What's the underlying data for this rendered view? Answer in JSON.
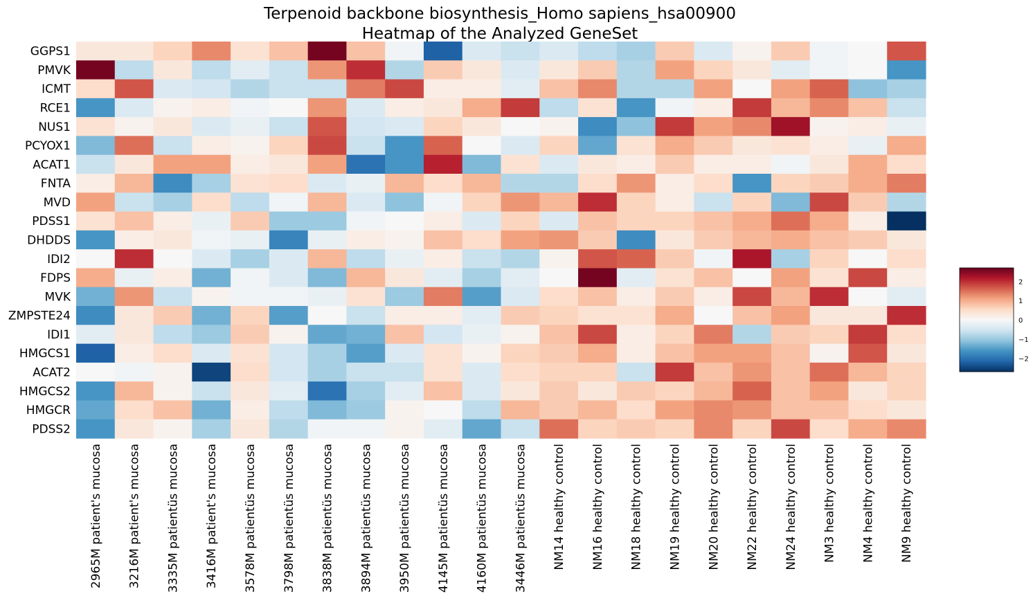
{
  "chart_data": {
    "type": "heatmap",
    "title": "Terpenoid backbone biosynthesis_Homo sapiens_hsa00900",
    "subtitle": "Heatmap of the Analyzed GeneSet",
    "rows": [
      "GGPS1",
      "PMVK",
      "ICMT",
      "RCE1",
      "NUS1",
      "PCYOX1",
      "ACAT1",
      "FNTA",
      "MVD",
      "PDSS1",
      "DHDDS",
      "IDI2",
      "FDPS",
      "MVK",
      "ZMPSTE24",
      "IDI1",
      "HMGCS1",
      "ACAT2",
      "HMGCS2",
      "HMGCR",
      "PDSS2"
    ],
    "columns": [
      "2965M patient's mucosa",
      "3216M patient's mucosa",
      "3335M patientüs mucosa",
      "3416M patient's mucosa",
      "3578M patientüs mucosa",
      "3798M patientüs mucosa",
      "3838M patientüs mucosa",
      "3894M patientüs mucosa",
      "3950M patientüs mucosa",
      "4145M patientüs mucosa",
      "4160M patientüs mucosa",
      "3446M patientüs mucosa",
      "NM14 healthy control",
      "NM16 healthy control",
      "NM18 healthy control",
      "NM19 healthy control",
      "NM20 healthy control",
      "NM22 healthy control",
      "NM24 healthy control",
      "NM3 healthy control",
      "NM4 healthy control",
      "NM9 healthy control"
    ],
    "values": [
      [
        0.3,
        0.3,
        0.6,
        1.3,
        0.4,
        0.8,
        2.6,
        0.8,
        -0.1,
        -2.2,
        -0.4,
        -0.6,
        -0.4,
        -0.7,
        -0.9,
        0.7,
        -0.4,
        0.1,
        0.7,
        -0.1,
        0.0,
        1.7
      ],
      [
        2.6,
        -0.7,
        0.3,
        -0.7,
        -0.3,
        -0.6,
        1.2,
        2.0,
        -0.8,
        0.7,
        0.3,
        -0.4,
        0.3,
        0.7,
        -0.8,
        1.1,
        0.6,
        0.3,
        -0.3,
        -0.1,
        0.0,
        -1.6
      ],
      [
        0.5,
        1.7,
        -0.4,
        -0.5,
        -0.8,
        -0.6,
        -0.6,
        1.4,
        1.8,
        0.2,
        0.2,
        -0.3,
        0.8,
        1.3,
        -0.8,
        -0.8,
        1.1,
        0.0,
        1.1,
        1.6,
        -1.1,
        -0.9
      ],
      [
        -1.6,
        -0.4,
        0.1,
        0.2,
        -0.1,
        0.0,
        1.2,
        -0.4,
        0.2,
        0.3,
        1.0,
        1.9,
        -0.7,
        0.4,
        -1.6,
        -0.1,
        0.2,
        1.9,
        0.9,
        1.3,
        0.8,
        -0.6
      ],
      [
        0.4,
        0.1,
        0.3,
        -0.4,
        -0.2,
        -0.6,
        1.7,
        -0.5,
        -0.4,
        0.6,
        0.3,
        0.0,
        0.1,
        -1.7,
        -1.1,
        1.9,
        1.1,
        1.3,
        2.3,
        0.1,
        0.2,
        -0.2
      ],
      [
        -1.2,
        1.5,
        -0.6,
        0.2,
        0.1,
        0.6,
        1.8,
        -0.6,
        -1.6,
        1.6,
        0.0,
        -0.4,
        0.6,
        -1.4,
        0.4,
        1.0,
        0.7,
        0.3,
        0.4,
        0.2,
        -0.2,
        1.0
      ],
      [
        -0.6,
        0.3,
        1.1,
        1.1,
        0.2,
        0.3,
        1.1,
        -2.0,
        -1.6,
        2.1,
        -1.2,
        0.4,
        -0.4,
        0.3,
        0.2,
        0.7,
        0.2,
        0.2,
        -0.1,
        0.3,
        1.0,
        0.5
      ],
      [
        0.2,
        0.9,
        -1.7,
        -0.9,
        0.4,
        0.5,
        -0.4,
        -0.2,
        0.9,
        0.5,
        0.9,
        -0.8,
        -0.8,
        0.5,
        1.2,
        0.2,
        0.5,
        -1.6,
        0.6,
        0.7,
        1.0,
        1.4
      ],
      [
        1.1,
        -0.6,
        -0.9,
        0.5,
        -0.7,
        -0.1,
        0.9,
        -0.4,
        -1.1,
        -0.1,
        0.6,
        1.2,
        0.9,
        2.0,
        0.6,
        0.2,
        -0.6,
        0.6,
        -1.2,
        1.8,
        0.7,
        -0.8
      ],
      [
        0.4,
        0.8,
        0.2,
        -0.2,
        0.7,
        -1.0,
        -1.0,
        -0.1,
        0.0,
        0.2,
        -0.4,
        0.6,
        -0.4,
        0.8,
        0.6,
        0.6,
        0.8,
        1.0,
        1.5,
        1.0,
        0.2,
        -2.7
      ],
      [
        -1.6,
        0.2,
        0.3,
        -0.1,
        -0.2,
        -1.8,
        -0.2,
        0.2,
        0.1,
        0.8,
        0.5,
        1.1,
        1.2,
        0.7,
        -1.7,
        0.3,
        0.7,
        0.9,
        1.0,
        0.8,
        0.7,
        0.3
      ],
      [
        0.0,
        2.0,
        0.0,
        -0.4,
        -0.9,
        -0.4,
        0.9,
        -0.7,
        -0.2,
        0.2,
        -0.6,
        -0.8,
        0.1,
        1.7,
        1.6,
        0.7,
        -0.1,
        2.2,
        -0.9,
        0.6,
        0.0,
        0.5
      ],
      [
        1.0,
        -0.2,
        0.2,
        -1.3,
        -0.1,
        -0.4,
        -1.2,
        0.9,
        0.3,
        -0.3,
        -0.9,
        -0.3,
        0.0,
        2.6,
        -0.3,
        0.4,
        0.8,
        0.0,
        1.1,
        0.4,
        1.8,
        0.2
      ],
      [
        -1.3,
        1.2,
        -0.6,
        0.1,
        -0.1,
        -0.1,
        -0.2,
        0.4,
        -1.0,
        1.4,
        -1.5,
        -0.4,
        0.5,
        0.8,
        0.2,
        0.7,
        0.2,
        1.8,
        0.9,
        2.0,
        0.0,
        -0.3
      ],
      [
        -1.7,
        0.3,
        0.7,
        -1.3,
        0.6,
        -1.5,
        0.0,
        -0.6,
        0.2,
        0.2,
        -0.3,
        0.7,
        0.6,
        0.4,
        0.4,
        1.0,
        0.0,
        0.8,
        1.1,
        0.3,
        0.3,
        2.0
      ],
      [
        -0.3,
        0.3,
        -0.7,
        -1.0,
        0.7,
        0.1,
        -1.4,
        -1.3,
        0.8,
        -0.5,
        -0.2,
        0.1,
        0.8,
        1.8,
        0.2,
        0.6,
        1.4,
        -0.8,
        0.7,
        0.6,
        1.9,
        0.5
      ],
      [
        -2.2,
        0.2,
        0.5,
        -0.4,
        0.4,
        -0.5,
        -0.9,
        -1.5,
        -0.4,
        0.4,
        0.1,
        0.6,
        0.7,
        1.0,
        0.2,
        0.8,
        1.1,
        1.1,
        0.8,
        0.1,
        1.7,
        0.3
      ],
      [
        0.0,
        -0.1,
        0.1,
        -2.5,
        0.5,
        -0.5,
        -0.9,
        -0.6,
        -0.6,
        0.4,
        -0.4,
        0.5,
        0.6,
        0.6,
        -0.6,
        1.9,
        0.8,
        1.2,
        0.8,
        1.5,
        0.9,
        0.6
      ],
      [
        -1.6,
        0.9,
        0.1,
        -0.6,
        0.3,
        -0.3,
        -2.0,
        -0.9,
        -0.3,
        0.8,
        -0.4,
        0.3,
        0.7,
        0.3,
        0.7,
        0.6,
        0.9,
        1.6,
        0.8,
        1.1,
        0.3,
        0.6
      ],
      [
        -1.4,
        0.5,
        0.8,
        -1.3,
        0.2,
        -0.7,
        -1.2,
        -1.0,
        0.1,
        0.0,
        -0.7,
        0.9,
        0.7,
        0.9,
        0.5,
        1.1,
        1.3,
        1.2,
        0.8,
        0.8,
        0.5,
        0.3
      ],
      [
        -1.6,
        0.3,
        0.1,
        -0.9,
        0.3,
        -0.8,
        -0.1,
        -0.1,
        0.1,
        -0.3,
        -1.4,
        -0.6,
        1.5,
        0.6,
        0.7,
        0.6,
        1.3,
        0.6,
        1.8,
        0.5,
        1.0,
        1.3
      ]
    ],
    "colorbar": {
      "min": -2.7,
      "max": 2.7,
      "ticks": [
        2,
        1,
        0,
        -1,
        -2
      ],
      "tick_labels": [
        "2",
        "1",
        "0",
        "−1",
        "−2"
      ],
      "colormap": "RdBu_r",
      "colors": [
        "#053061",
        "#2166ac",
        "#4393c3",
        "#92c5de",
        "#d1e5f0",
        "#f7f7f7",
        "#fddbc7",
        "#f4a582",
        "#d6604d",
        "#b2182b",
        "#67001f"
      ]
    },
    "grid": false
  }
}
